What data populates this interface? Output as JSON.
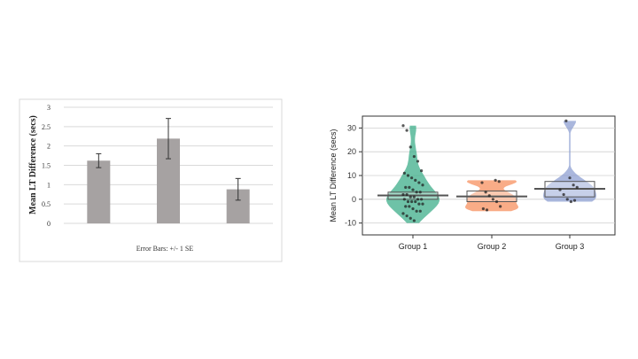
{
  "chart_data": [
    {
      "type": "bar",
      "categories": [
        "",
        "",
        ""
      ],
      "values": [
        1.62,
        2.19,
        0.88
      ],
      "error": [
        0.18,
        0.52,
        0.28
      ],
      "ylabel": "Mean LT Difference (secs)",
      "xlabel": "Error Bars: +/- 1 SE",
      "ylim": [
        0,
        3
      ],
      "yticks": [
        "0",
        "0.5",
        "1",
        "1.5",
        "2",
        "2.5",
        "3"
      ],
      "grid": true,
      "bar_color": "#a6a2a2"
    },
    {
      "type": "violin-box",
      "categories": [
        "Group 1",
        "Group 2",
        "Group 3"
      ],
      "ylabel": "Mean LT Difference (secs)",
      "ylim": [
        -15,
        35
      ],
      "yticks": [
        "-10",
        "0",
        "10",
        "20",
        "30"
      ],
      "grid": true,
      "colors": [
        "#3dae8a",
        "#f7905f",
        "#8e9fd1"
      ],
      "series": [
        {
          "name": "Group 1",
          "mean": 1.6,
          "box": [
            0,
            3
          ],
          "range": [
            -10,
            31
          ],
          "points": [
            31,
            29,
            22,
            18,
            16,
            12,
            11,
            10,
            9,
            8,
            7,
            6,
            5,
            5,
            4,
            3,
            3,
            2,
            2,
            1,
            1,
            0,
            0,
            0,
            -1,
            -1,
            -1,
            -2,
            -2,
            -3,
            -3,
            -4,
            -5,
            -5,
            -6,
            -7,
            -8,
            -9
          ]
        },
        {
          "name": "Group 2",
          "mean": 1.2,
          "box": [
            -1,
            3.5
          ],
          "range": [
            -5,
            8
          ],
          "points": [
            8,
            7.5,
            7,
            3,
            1.5,
            0,
            -1,
            -3,
            -4,
            -4.5
          ]
        },
        {
          "name": "Group 3",
          "mean": 4.4,
          "box": [
            1,
            7.5
          ],
          "range": [
            -1,
            33
          ],
          "points": [
            33,
            9,
            6,
            5,
            4,
            2,
            0,
            -1,
            -0.5
          ]
        }
      ]
    }
  ]
}
